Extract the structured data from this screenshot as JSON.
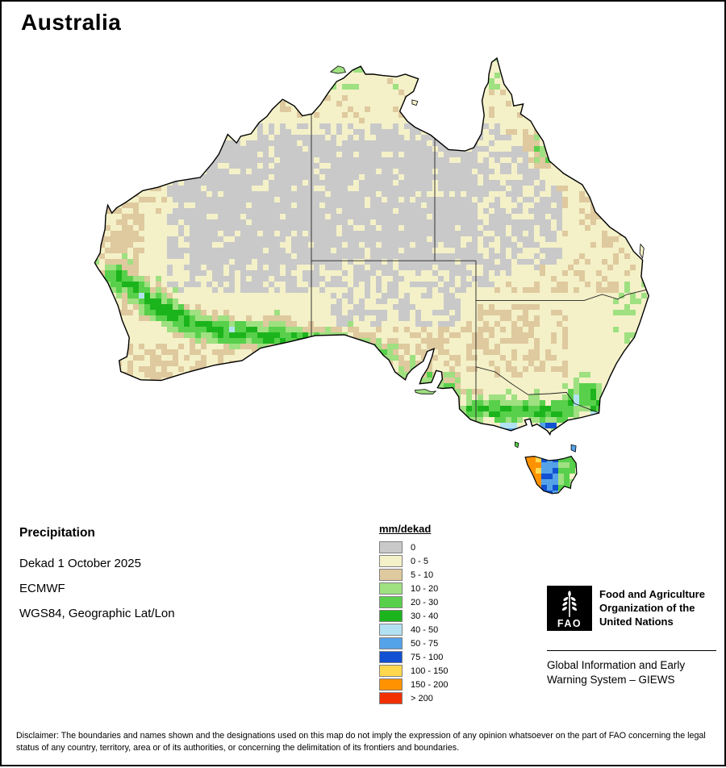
{
  "page": {
    "title": "Australia"
  },
  "info": {
    "heading": "Precipitation",
    "lines": [
      "Dekad 1 October 2025",
      "ECMWF",
      "WGS84, Geographic Lat/Lon"
    ]
  },
  "legend": {
    "title": "mm/dekad",
    "entries": [
      {
        "label": "0",
        "color": "#c9c9c9"
      },
      {
        "label": "0 - 5",
        "color": "#f4f1c8"
      },
      {
        "label": "5 - 10",
        "color": "#dfc99e"
      },
      {
        "label": "10 - 20",
        "color": "#9fe081"
      },
      {
        "label": "20 - 30",
        "color": "#58d04b"
      },
      {
        "label": "30 - 40",
        "color": "#1cb41c"
      },
      {
        "label": "40 - 50",
        "color": "#b2e2f2"
      },
      {
        "label": "50 - 75",
        "color": "#55a2e8"
      },
      {
        "label": "75 - 100",
        "color": "#1151d2"
      },
      {
        "label": "100 - 150",
        "color": "#ffd84d"
      },
      {
        "label": "150 - 200",
        "color": "#ff9200"
      },
      {
        "label": "> 200",
        "color": "#f23000"
      }
    ]
  },
  "attribution": {
    "fao_logo_text": "FAO",
    "org_name": "Food and Agriculture Organization of the United Nations",
    "giews": "Global Information and Early Warning System – GIEWS"
  },
  "disclaimer": "Disclaimer: The boundaries and names shown and the designations used on this map do not imply the expression of any opinion whatsoever on the part of FAO concerning the legal status of any country, territory, area or of its authorities, or concerning the delimitation of its frontiers and boundaries."
}
